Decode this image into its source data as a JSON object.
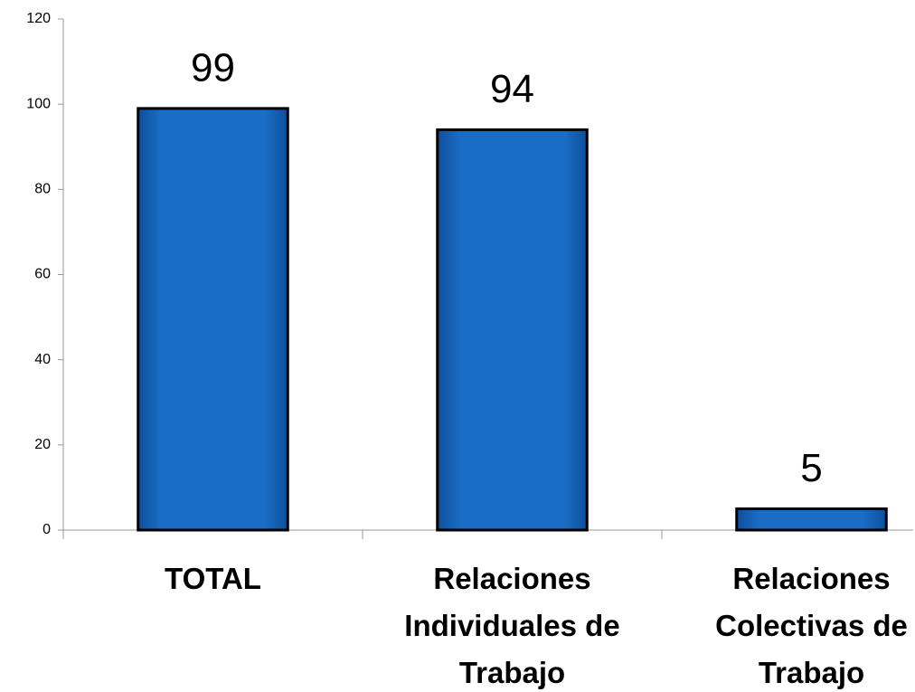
{
  "chart_data": {
    "type": "bar",
    "categories": [
      "TOTAL",
      "Relaciones Individuales de Trabajo",
      "Relaciones Colectivas de Trabajo"
    ],
    "values": [
      99,
      94,
      5
    ],
    "color": "#1a6cc4",
    "ylim": [
      0,
      120
    ],
    "yticks": [
      0,
      20,
      40,
      60,
      80,
      100,
      120
    ],
    "grid": false
  }
}
